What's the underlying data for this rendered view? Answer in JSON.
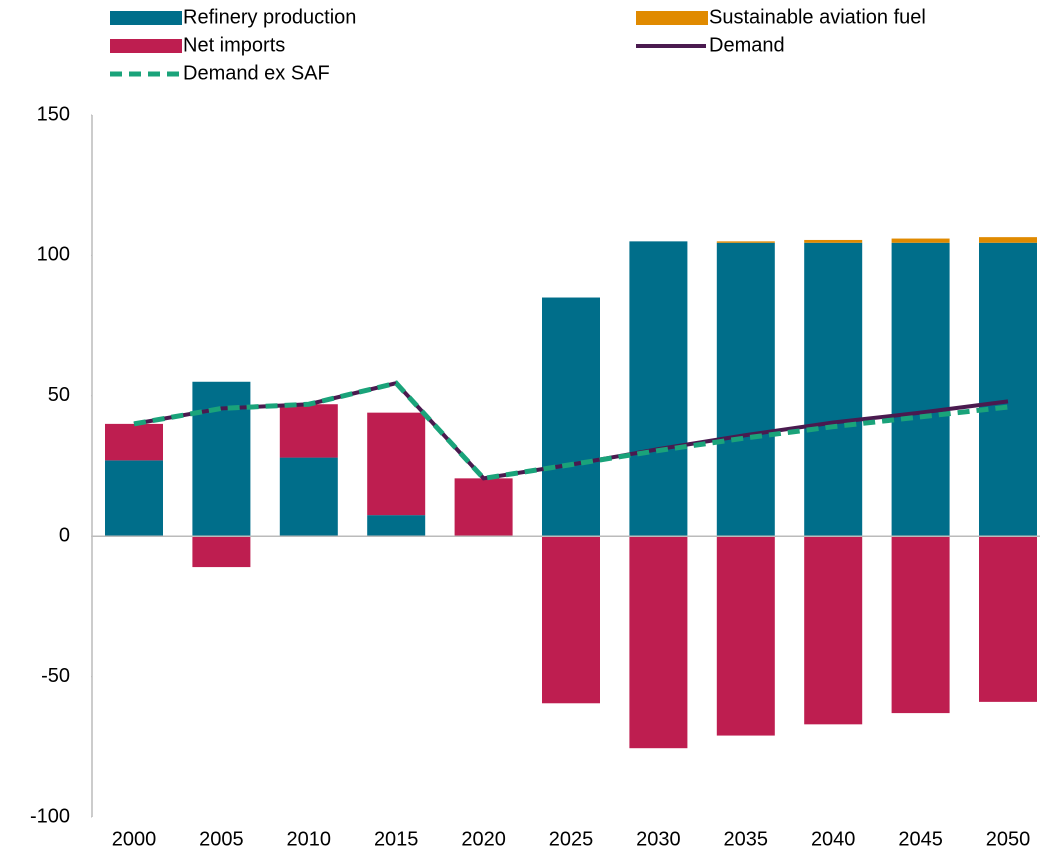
{
  "chart_data": {
    "type": "bar",
    "categories": [
      "2000",
      "2005",
      "2010",
      "2015",
      "2020",
      "2025",
      "2030",
      "2035",
      "2040",
      "2045",
      "2050"
    ],
    "series": [
      {
        "name": "Refinery production",
        "type": "bar",
        "color": "#006e8a",
        "values": [
          27,
          55,
          28,
          7.5,
          0,
          85,
          105,
          104.5,
          104.5,
          104.5,
          104.5
        ]
      },
      {
        "name": "Sustainable aviation fuel",
        "type": "bar",
        "color": "#e08a00",
        "values": [
          0,
          0,
          0,
          0,
          0,
          0,
          0,
          0.5,
          1,
          1.5,
          2
        ]
      },
      {
        "name": "Net imports",
        "type": "bar",
        "color": "#be1e50",
        "values": [
          13,
          -11,
          19,
          36.5,
          20.6,
          -59.5,
          -75.5,
          -71,
          -67,
          -63,
          -59
        ]
      },
      {
        "name": "Demand",
        "type": "line",
        "color": "#4a1a4f",
        "values": [
          40,
          45.5,
          47,
          54.5,
          20.6,
          25.5,
          31,
          36,
          40.5,
          44,
          48
        ]
      },
      {
        "name": "Demand ex SAF",
        "type": "line",
        "color": "#1aa37a",
        "dashed": true,
        "values": [
          40,
          45.5,
          47,
          54.5,
          20.6,
          25.5,
          30.5,
          35,
          39,
          42.5,
          46
        ]
      }
    ],
    "ylim": [
      -100,
      150
    ],
    "yticks": [
      {
        "value": -100,
        "label": "-100"
      },
      {
        "value": -50,
        "label": "-50"
      },
      0,
      50,
      100,
      150
    ]
  }
}
